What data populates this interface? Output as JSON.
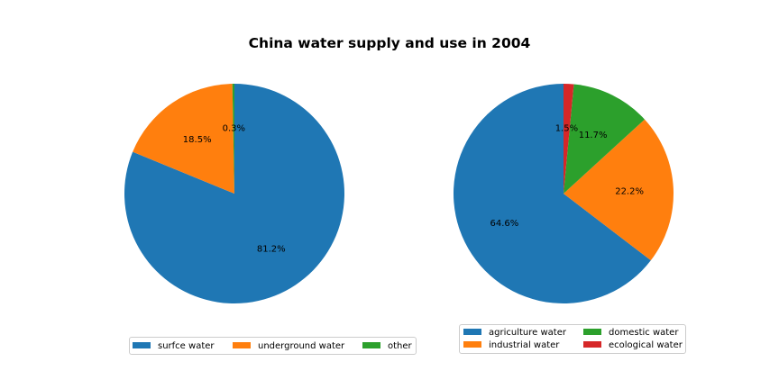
{
  "figure": {
    "title": "China water supply and use in 2004"
  },
  "chart_data": [
    {
      "type": "pie",
      "title": "",
      "labels": [
        "surfce water",
        "underground water",
        "other"
      ],
      "values": [
        81.2,
        18.5,
        0.3
      ],
      "autopct": [
        "81.2%",
        "18.5%",
        "0.3%"
      ],
      "colors": [
        "#1f77b4",
        "#ff7f0e",
        "#2ca02c"
      ],
      "start_angle_deg": 90,
      "direction": "clockwise",
      "legend": {
        "placement": "bottom",
        "columns": 3
      }
    },
    {
      "type": "pie",
      "title": "",
      "labels": [
        "agriculture water",
        "industrial water",
        "domestic water",
        "ecological water"
      ],
      "values": [
        64.6,
        22.2,
        11.7,
        1.5
      ],
      "autopct": [
        "64.6%",
        "22.2%",
        "11.7%",
        "1.5%"
      ],
      "colors": [
        "#1f77b4",
        "#ff7f0e",
        "#2ca02c",
        "#d62728"
      ],
      "start_angle_deg": 90,
      "direction": "counterclockwise",
      "legend": {
        "placement": "bottom",
        "columns": 2
      }
    }
  ]
}
